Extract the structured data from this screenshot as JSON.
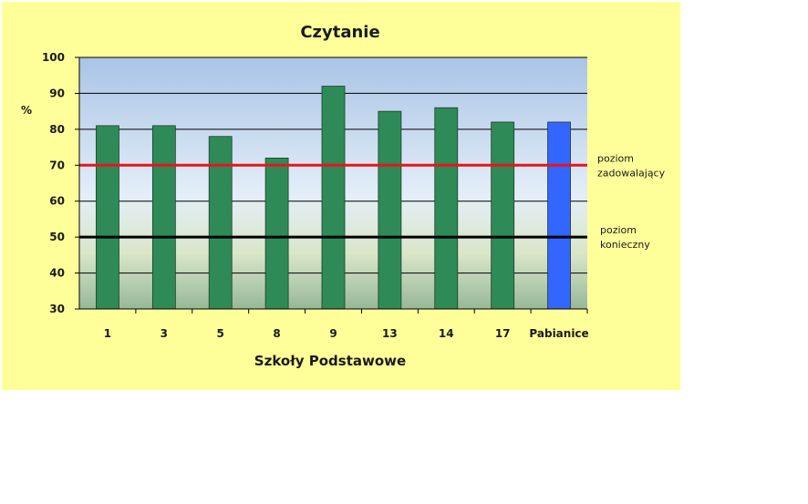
{
  "chart_data": {
    "type": "bar",
    "title": "Czytanie",
    "xlabel": "Szkoły Podstawowe",
    "ylabel": "%",
    "categories": [
      "1",
      "3",
      "5",
      "8",
      "9",
      "13",
      "14",
      "17",
      "Pabianice"
    ],
    "values": [
      81,
      81,
      78,
      72,
      92,
      85,
      86,
      82,
      82
    ],
    "ylim": [
      30,
      100
    ],
    "yticks": [
      30,
      40,
      50,
      60,
      70,
      80,
      90,
      100
    ],
    "grid": true,
    "legend": "none",
    "reference_lines": [
      {
        "value": 70,
        "label_line1": "poziom",
        "label_line2": "zadowalający",
        "color": "#e8151b"
      },
      {
        "value": 50,
        "label_line1": "poziom",
        "label_line2": "konieczny",
        "color": "#000000"
      }
    ],
    "colors": {
      "background": "#ffff99",
      "bar": "#2e8b57",
      "bar_highlight": "#3366ff",
      "highlight_category": "Pabianice"
    }
  }
}
